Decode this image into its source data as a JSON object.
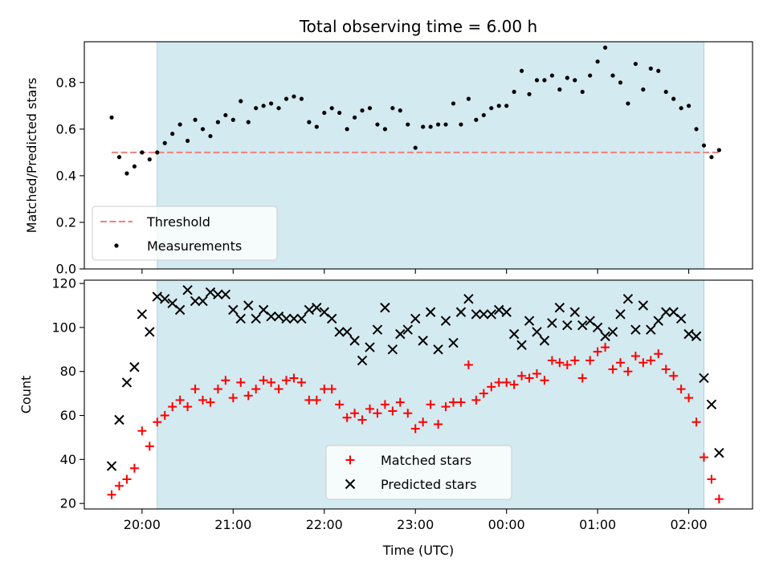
{
  "chart_data": [
    {
      "type": "scatter",
      "title": "Total observing time = 6.00 h",
      "xlabel": "",
      "ylabel": "Matched/Predicted stars",
      "xlim": [
        "2023-01-01T19:22",
        "2023-01-02T02:42"
      ],
      "ylim": [
        0.0,
        0.975
      ],
      "yticks": [
        0.0,
        0.2,
        0.4,
        0.6,
        0.8
      ],
      "yticklabels": [
        "0.0",
        "0.2",
        "0.4",
        "0.6",
        "0.8"
      ],
      "observing_window": [
        "2023-01-01T20:10",
        "2023-01-02T02:10"
      ],
      "observing_window_color": "#d3eaf0",
      "legend": {
        "placement": "lower-left",
        "entries": [
          "Threshold",
          "Measurements"
        ]
      },
      "threshold": {
        "name": "Threshold",
        "value": 0.5,
        "x": [
          "2023-01-01T19:40",
          "2023-01-02T02:21"
        ],
        "color": "#f08080"
      },
      "series": [
        {
          "name": "Measurements",
          "color": "#000000",
          "x": [
            "2023-01-01T19:40",
            "2023-01-01T19:45",
            "2023-01-01T19:50",
            "2023-01-01T19:55",
            "2023-01-01T20:00",
            "2023-01-01T20:05",
            "2023-01-01T20:10",
            "2023-01-01T20:15",
            "2023-01-01T20:20",
            "2023-01-01T20:25",
            "2023-01-01T20:30",
            "2023-01-01T20:35",
            "2023-01-01T20:40",
            "2023-01-01T20:45",
            "2023-01-01T20:50",
            "2023-01-01T20:55",
            "2023-01-01T21:00",
            "2023-01-01T21:05",
            "2023-01-01T21:10",
            "2023-01-01T21:15",
            "2023-01-01T21:20",
            "2023-01-01T21:25",
            "2023-01-01T21:30",
            "2023-01-01T21:35",
            "2023-01-01T21:40",
            "2023-01-01T21:45",
            "2023-01-01T21:50",
            "2023-01-01T21:55",
            "2023-01-01T22:00",
            "2023-01-01T22:05",
            "2023-01-01T22:10",
            "2023-01-01T22:15",
            "2023-01-01T22:20",
            "2023-01-01T22:25",
            "2023-01-01T22:30",
            "2023-01-01T22:35",
            "2023-01-01T22:40",
            "2023-01-01T22:45",
            "2023-01-01T22:50",
            "2023-01-01T22:55",
            "2023-01-01T23:00",
            "2023-01-01T23:05",
            "2023-01-01T23:10",
            "2023-01-01T23:15",
            "2023-01-01T23:20",
            "2023-01-01T23:25",
            "2023-01-01T23:30",
            "2023-01-01T23:35",
            "2023-01-01T23:40",
            "2023-01-01T23:45",
            "2023-01-01T23:50",
            "2023-01-01T23:55",
            "2023-01-02T00:00",
            "2023-01-02T00:05",
            "2023-01-02T00:10",
            "2023-01-02T00:15",
            "2023-01-02T00:20",
            "2023-01-02T00:25",
            "2023-01-02T00:30",
            "2023-01-02T00:35",
            "2023-01-02T00:40",
            "2023-01-02T00:45",
            "2023-01-02T00:50",
            "2023-01-02T00:55",
            "2023-01-02T01:00",
            "2023-01-02T01:05",
            "2023-01-02T01:10",
            "2023-01-02T01:15",
            "2023-01-02T01:20",
            "2023-01-02T01:25",
            "2023-01-02T01:30",
            "2023-01-02T01:35",
            "2023-01-02T01:40",
            "2023-01-02T01:45",
            "2023-01-02T01:50",
            "2023-01-02T01:55",
            "2023-01-02T02:00",
            "2023-01-02T02:05",
            "2023-01-02T02:10",
            "2023-01-02T02:15",
            "2023-01-02T02:20"
          ],
          "y": [
            0.65,
            0.48,
            0.41,
            0.44,
            0.5,
            0.47,
            0.5,
            0.54,
            0.58,
            0.62,
            0.55,
            0.64,
            0.6,
            0.57,
            0.63,
            0.66,
            0.64,
            0.72,
            0.63,
            0.69,
            0.7,
            0.71,
            0.69,
            0.73,
            0.74,
            0.73,
            0.63,
            0.61,
            0.67,
            0.69,
            0.67,
            0.6,
            0.65,
            0.68,
            0.69,
            0.62,
            0.6,
            0.69,
            0.68,
            0.62,
            0.52,
            0.61,
            0.61,
            0.62,
            0.62,
            0.71,
            0.62,
            0.73,
            0.64,
            0.66,
            0.69,
            0.7,
            0.7,
            0.76,
            0.85,
            0.75,
            0.81,
            0.81,
            0.83,
            0.77,
            0.82,
            0.81,
            0.76,
            0.83,
            0.89,
            0.95,
            0.83,
            0.8,
            0.71,
            0.88,
            0.77,
            0.86,
            0.85,
            0.76,
            0.73,
            0.69,
            0.7,
            0.6,
            0.53,
            0.48,
            0.51
          ]
        }
      ]
    },
    {
      "type": "scatter",
      "title": "",
      "xlabel": "Time (UTC)",
      "ylabel": "Count",
      "xlim": [
        "2023-01-01T19:22",
        "2023-01-02T02:42"
      ],
      "ylim": [
        17.5,
        121.5
      ],
      "yticks": [
        20,
        40,
        60,
        80,
        100,
        120
      ],
      "yticklabels": [
        "20",
        "40",
        "60",
        "80",
        "100",
        "120"
      ],
      "xticks": [
        "2023-01-01T20:00",
        "2023-01-01T21:00",
        "2023-01-01T22:00",
        "2023-01-01T23:00",
        "2023-01-02T00:00",
        "2023-01-02T01:00",
        "2023-01-02T02:00"
      ],
      "xticklabels": [
        "20:00",
        "21:00",
        "22:00",
        "23:00",
        "00:00",
        "01:00",
        "02:00"
      ],
      "observing_window": [
        "2023-01-01T20:10",
        "2023-01-02T02:10"
      ],
      "observing_window_color": "#d3eaf0",
      "legend": {
        "placement": "lower-center",
        "entries": [
          "Matched stars",
          "Predicted stars"
        ]
      },
      "series": [
        {
          "name": "Matched stars",
          "color": "#ff0000",
          "marker": "plus",
          "x": [
            "2023-01-01T19:40",
            "2023-01-01T19:45",
            "2023-01-01T19:50",
            "2023-01-01T19:55",
            "2023-01-01T20:00",
            "2023-01-01T20:05",
            "2023-01-01T20:10",
            "2023-01-01T20:15",
            "2023-01-01T20:20",
            "2023-01-01T20:25",
            "2023-01-01T20:30",
            "2023-01-01T20:35",
            "2023-01-01T20:40",
            "2023-01-01T20:45",
            "2023-01-01T20:50",
            "2023-01-01T20:55",
            "2023-01-01T21:00",
            "2023-01-01T21:05",
            "2023-01-01T21:10",
            "2023-01-01T21:15",
            "2023-01-01T21:20",
            "2023-01-01T21:25",
            "2023-01-01T21:30",
            "2023-01-01T21:35",
            "2023-01-01T21:40",
            "2023-01-01T21:45",
            "2023-01-01T21:50",
            "2023-01-01T21:55",
            "2023-01-01T22:00",
            "2023-01-01T22:05",
            "2023-01-01T22:10",
            "2023-01-01T22:15",
            "2023-01-01T22:20",
            "2023-01-01T22:25",
            "2023-01-01T22:30",
            "2023-01-01T22:35",
            "2023-01-01T22:40",
            "2023-01-01T22:45",
            "2023-01-01T22:50",
            "2023-01-01T22:55",
            "2023-01-01T23:00",
            "2023-01-01T23:05",
            "2023-01-01T23:10",
            "2023-01-01T23:15",
            "2023-01-01T23:20",
            "2023-01-01T23:25",
            "2023-01-01T23:30",
            "2023-01-01T23:35",
            "2023-01-01T23:40",
            "2023-01-01T23:45",
            "2023-01-01T23:50",
            "2023-01-01T23:55",
            "2023-01-02T00:00",
            "2023-01-02T00:05",
            "2023-01-02T00:10",
            "2023-01-02T00:15",
            "2023-01-02T00:20",
            "2023-01-02T00:25",
            "2023-01-02T00:30",
            "2023-01-02T00:35",
            "2023-01-02T00:40",
            "2023-01-02T00:45",
            "2023-01-02T00:50",
            "2023-01-02T00:55",
            "2023-01-02T01:00",
            "2023-01-02T01:05",
            "2023-01-02T01:10",
            "2023-01-02T01:15",
            "2023-01-02T01:20",
            "2023-01-02T01:25",
            "2023-01-02T01:30",
            "2023-01-02T01:35",
            "2023-01-02T01:40",
            "2023-01-02T01:45",
            "2023-01-02T01:50",
            "2023-01-02T01:55",
            "2023-01-02T02:00",
            "2023-01-02T02:05",
            "2023-01-02T02:10",
            "2023-01-02T02:15",
            "2023-01-02T02:20"
          ],
          "y": [
            24,
            28,
            31,
            36,
            53,
            46,
            57,
            60,
            64,
            67,
            64,
            72,
            67,
            66,
            72,
            76,
            68,
            75,
            69,
            72,
            76,
            75,
            72,
            76,
            77,
            75,
            67,
            67,
            72,
            72,
            65,
            59,
            61,
            58,
            63,
            61,
            65,
            62,
            66,
            61,
            54,
            57,
            65,
            56,
            64,
            66,
            66,
            83,
            67,
            70,
            73,
            75,
            75,
            74,
            78,
            77,
            79,
            76,
            85,
            84,
            83,
            85,
            77,
            85,
            89,
            91,
            81,
            84,
            80,
            87,
            84,
            85,
            88,
            81,
            78,
            72,
            68,
            57,
            41,
            31,
            22
          ]
        },
        {
          "name": "Predicted stars",
          "color": "#000000",
          "marker": "x",
          "x": [
            "2023-01-01T19:40",
            "2023-01-01T19:45",
            "2023-01-01T19:50",
            "2023-01-01T19:55",
            "2023-01-01T20:00",
            "2023-01-01T20:05",
            "2023-01-01T20:10",
            "2023-01-01T20:15",
            "2023-01-01T20:20",
            "2023-01-01T20:25",
            "2023-01-01T20:30",
            "2023-01-01T20:35",
            "2023-01-01T20:40",
            "2023-01-01T20:45",
            "2023-01-01T20:50",
            "2023-01-01T20:55",
            "2023-01-01T21:00",
            "2023-01-01T21:05",
            "2023-01-01T21:10",
            "2023-01-01T21:15",
            "2023-01-01T21:20",
            "2023-01-01T21:25",
            "2023-01-01T21:30",
            "2023-01-01T21:35",
            "2023-01-01T21:40",
            "2023-01-01T21:45",
            "2023-01-01T21:50",
            "2023-01-01T21:55",
            "2023-01-01T22:00",
            "2023-01-01T22:05",
            "2023-01-01T22:10",
            "2023-01-01T22:15",
            "2023-01-01T22:20",
            "2023-01-01T22:25",
            "2023-01-01T22:30",
            "2023-01-01T22:35",
            "2023-01-01T22:40",
            "2023-01-01T22:45",
            "2023-01-01T22:50",
            "2023-01-01T22:55",
            "2023-01-01T23:00",
            "2023-01-01T23:05",
            "2023-01-01T23:10",
            "2023-01-01T23:15",
            "2023-01-01T23:20",
            "2023-01-01T23:25",
            "2023-01-01T23:30",
            "2023-01-01T23:35",
            "2023-01-01T23:40",
            "2023-01-01T23:45",
            "2023-01-01T23:50",
            "2023-01-01T23:55",
            "2023-01-02T00:00",
            "2023-01-02T00:05",
            "2023-01-02T00:10",
            "2023-01-02T00:15",
            "2023-01-02T00:20",
            "2023-01-02T00:25",
            "2023-01-02T00:30",
            "2023-01-02T00:35",
            "2023-01-02T00:40",
            "2023-01-02T00:45",
            "2023-01-02T00:50",
            "2023-01-02T00:55",
            "2023-01-02T01:00",
            "2023-01-02T01:05",
            "2023-01-02T01:10",
            "2023-01-02T01:15",
            "2023-01-02T01:20",
            "2023-01-02T01:25",
            "2023-01-02T01:30",
            "2023-01-02T01:35",
            "2023-01-02T01:40",
            "2023-01-02T01:45",
            "2023-01-02T01:50",
            "2023-01-02T01:55",
            "2023-01-02T02:00",
            "2023-01-02T02:05",
            "2023-01-02T02:10",
            "2023-01-02T02:15",
            "2023-01-02T02:20"
          ],
          "y": [
            37,
            58,
            75,
            82,
            106,
            98,
            114,
            113,
            111,
            108,
            117,
            112,
            112,
            116,
            115,
            115,
            108,
            104,
            110,
            104,
            108,
            105,
            105,
            104,
            104,
            104,
            108,
            109,
            107,
            104,
            98,
            98,
            94,
            85,
            91,
            99,
            109,
            90,
            97,
            99,
            104,
            94,
            107,
            90,
            103,
            93,
            107,
            113,
            106,
            106,
            106,
            108,
            107,
            97,
            92,
            103,
            98,
            94,
            102,
            109,
            101,
            107,
            101,
            103,
            100,
            96,
            98,
            106,
            113,
            99,
            110,
            99,
            103,
            107,
            107,
            104,
            97,
            96,
            77,
            65,
            43
          ]
        }
      ]
    }
  ]
}
